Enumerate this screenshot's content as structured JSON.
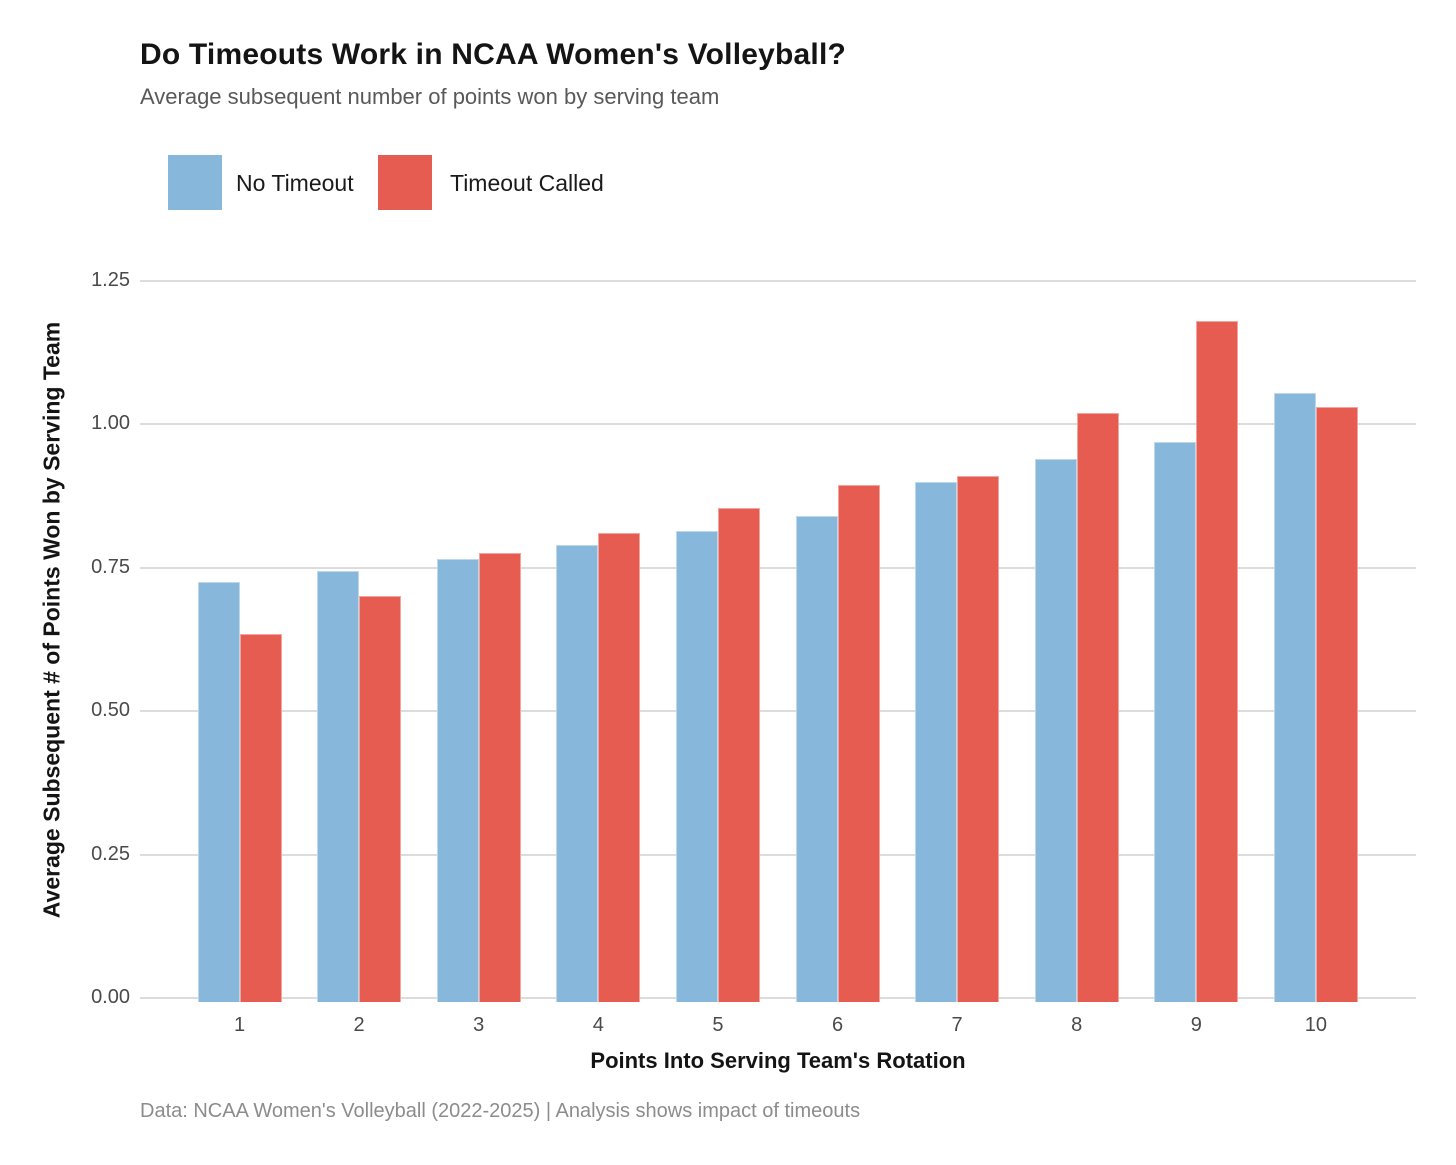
{
  "header": {
    "title": "Do Timeouts Work in NCAA Women's Volleyball?",
    "subtitle": "Average subsequent number of points won by serving team"
  },
  "legend": {
    "items": [
      {
        "label": "No Timeout",
        "color": "#87b7db"
      },
      {
        "label": "Timeout Called",
        "color": "#e65c50"
      }
    ]
  },
  "chart_data": {
    "type": "bar",
    "title": "Do Timeouts Work in NCAA Women's Volleyball?",
    "subtitle": "Average subsequent number of points won by serving team",
    "categories": [
      "1",
      "2",
      "3",
      "4",
      "5",
      "6",
      "7",
      "8",
      "9",
      "10"
    ],
    "series": [
      {
        "name": "No Timeout",
        "color": "#87b7db",
        "values": [
          0.725,
          0.745,
          0.765,
          0.79,
          0.815,
          0.84,
          0.9,
          0.94,
          0.97,
          1.055
        ]
      },
      {
        "name": "Timeout Called",
        "color": "#e65c50",
        "values": [
          0.635,
          0.7,
          0.775,
          0.81,
          0.855,
          0.895,
          0.91,
          1.02,
          1.18,
          1.03
        ]
      }
    ],
    "xlabel": "Points Into Serving Team's Rotation",
    "ylabel": "Average Subsequent # of Points Won by Serving Team",
    "ylim": [
      0,
      1.25
    ],
    "yticks": [
      0,
      0.25,
      0.5,
      0.75,
      1,
      1.25
    ],
    "ytick_labels": [
      "0.00",
      "0.25",
      "0.50",
      "0.75",
      "1.00",
      "1.25"
    ],
    "grid": true,
    "legend_position": "top-left",
    "grid_color": "#dcdcdc"
  },
  "footer": {
    "text": "Data: NCAA Women's Volleyball (2022-2025) | Analysis shows impact of timeouts"
  }
}
